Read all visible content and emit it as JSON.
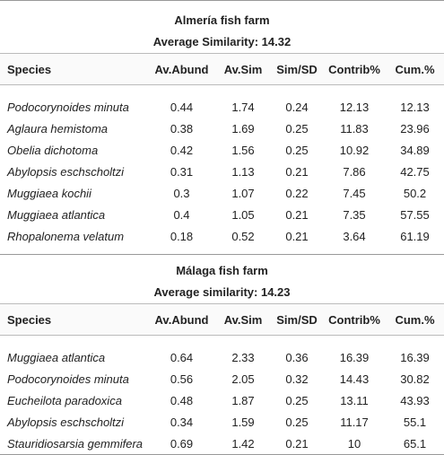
{
  "sections": [
    {
      "title": "Almería fish farm",
      "subtitle": "Average Similarity: 14.32",
      "columns": [
        "Species",
        "Av.Abund",
        "Av.Sim",
        "Sim/SD",
        "Contrib%",
        "Cum.%"
      ],
      "rows": [
        [
          "Podocorynoides minuta",
          0.44,
          1.74,
          0.24,
          12.13,
          12.13
        ],
        [
          "Aglaura hemistoma",
          0.38,
          1.69,
          0.25,
          11.83,
          23.96
        ],
        [
          "Obelia dichotoma",
          0.42,
          1.56,
          0.25,
          10.92,
          34.89
        ],
        [
          "Abylopsis eschscholtzi",
          0.31,
          1.13,
          0.21,
          7.86,
          42.75
        ],
        [
          "Muggiaea kochii",
          0.3,
          1.07,
          0.22,
          7.45,
          50.2
        ],
        [
          "Muggiaea atlantica",
          0.4,
          1.05,
          0.21,
          7.35,
          57.55
        ],
        [
          "Rhopalonema velatum",
          0.18,
          0.52,
          0.21,
          3.64,
          61.19
        ]
      ]
    },
    {
      "title": "Málaga fish farm",
      "subtitle": "Average similarity: 14.23",
      "columns": [
        "Species",
        "Av.Abund",
        "Av.Sim",
        "Sim/SD",
        "Contrib%",
        "Cum.%"
      ],
      "rows": [
        [
          "Muggiaea atlantica",
          0.64,
          2.33,
          0.36,
          16.39,
          16.39
        ],
        [
          "Podocorynoides minuta",
          0.56,
          2.05,
          0.32,
          14.43,
          30.82
        ],
        [
          "Eucheilota paradoxica",
          0.48,
          1.87,
          0.25,
          13.11,
          43.93
        ],
        [
          "Abylopsis eschscholtzi",
          0.34,
          1.59,
          0.25,
          11.17,
          55.1
        ],
        [
          "Stauridiosarsia gemmifera",
          0.69,
          1.42,
          0.21,
          10,
          65.1
        ]
      ]
    }
  ]
}
